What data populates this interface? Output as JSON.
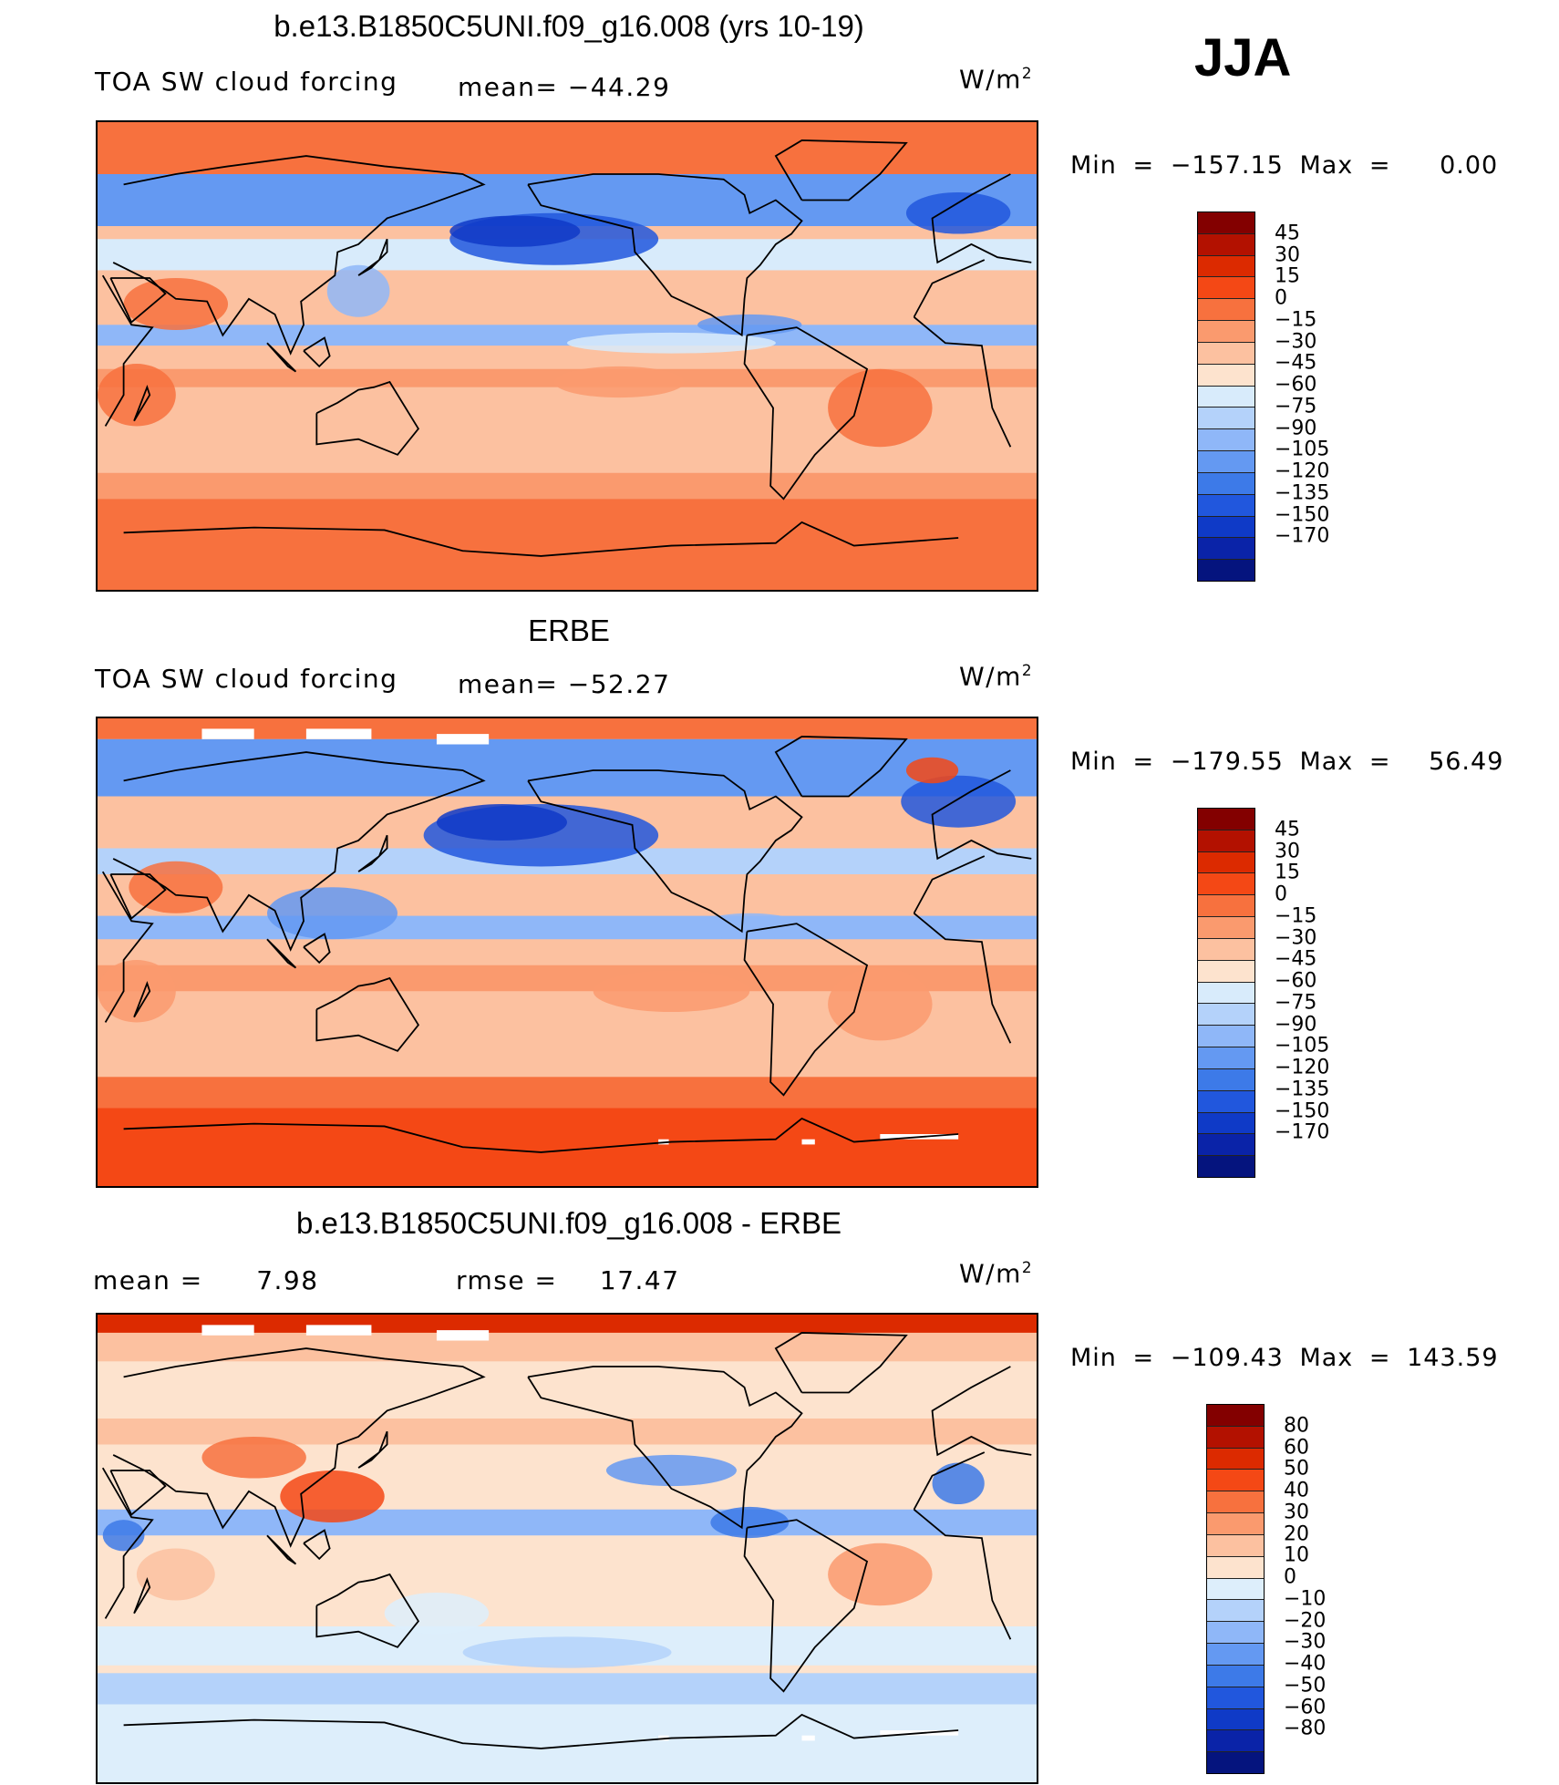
{
  "season": "JJA",
  "units_base": "W/m",
  "units_exp": "2",
  "palette_abs": [
    "#830000",
    "#b31100",
    "#dc2a00",
    "#f44815",
    "#f7713e",
    "#fa9a6e",
    "#fcc1a0",
    "#fde3ce",
    "#d8ebfb",
    "#b4d2fa",
    "#8fb7f8",
    "#6499f2",
    "#3d7ae8",
    "#2157dd",
    "#0f3ac7",
    "#0a23a8",
    "#05147e"
  ],
  "palette_diff": [
    "#830000",
    "#b31100",
    "#dc2a00",
    "#f44815",
    "#f7713e",
    "#fa9a6e",
    "#fcc1a0",
    "#fde3ce",
    "#ddeefb",
    "#b4d2fa",
    "#8fb7f8",
    "#6499f2",
    "#3d7ae8",
    "#2157dd",
    "#0f3ac7",
    "#0a23a8",
    "#05147e"
  ],
  "chart_data": [
    {
      "type": "heatmap",
      "title": "b.e13.B1850C5UNI.f09_g16.008 (yrs 10-19)",
      "variable": "TOA SW cloud forcing",
      "mean_label": "mean=",
      "mean_value": "−44.29",
      "min_label": "Min",
      "min_value": "−157.15",
      "max_label": "Max",
      "max_value": "0.00",
      "contour_levels": [
        "45",
        "30",
        "15",
        "0",
        "−15",
        "−30",
        "−45",
        "−60",
        "−75",
        "−90",
        "−105",
        "−120",
        "−135",
        "−150",
        "−170"
      ]
    },
    {
      "type": "heatmap",
      "title": "ERBE",
      "variable": "TOA SW cloud forcing",
      "mean_label": "mean=",
      "mean_value": "−52.27",
      "min_label": "Min",
      "min_value": "−179.55",
      "max_label": "Max",
      "max_value": "56.49",
      "contour_levels": [
        "45",
        "30",
        "15",
        "0",
        "−15",
        "−30",
        "−45",
        "−60",
        "−75",
        "−90",
        "−105",
        "−120",
        "−135",
        "−150",
        "−170"
      ]
    },
    {
      "type": "heatmap",
      "title": "b.e13.B1850C5UNI.f09_g16.008 - ERBE",
      "mean_label": "mean =",
      "mean_value": "7.98",
      "rmse_label": "rmse =",
      "rmse_value": "17.47",
      "min_label": "Min",
      "min_value": "−109.43",
      "max_label": "Max",
      "max_value": "143.59",
      "contour_levels": [
        "80",
        "60",
        "50",
        "40",
        "30",
        "20",
        "10",
        "0",
        "−10",
        "−20",
        "−30",
        "−40",
        "−50",
        "−60",
        "−80"
      ]
    }
  ]
}
